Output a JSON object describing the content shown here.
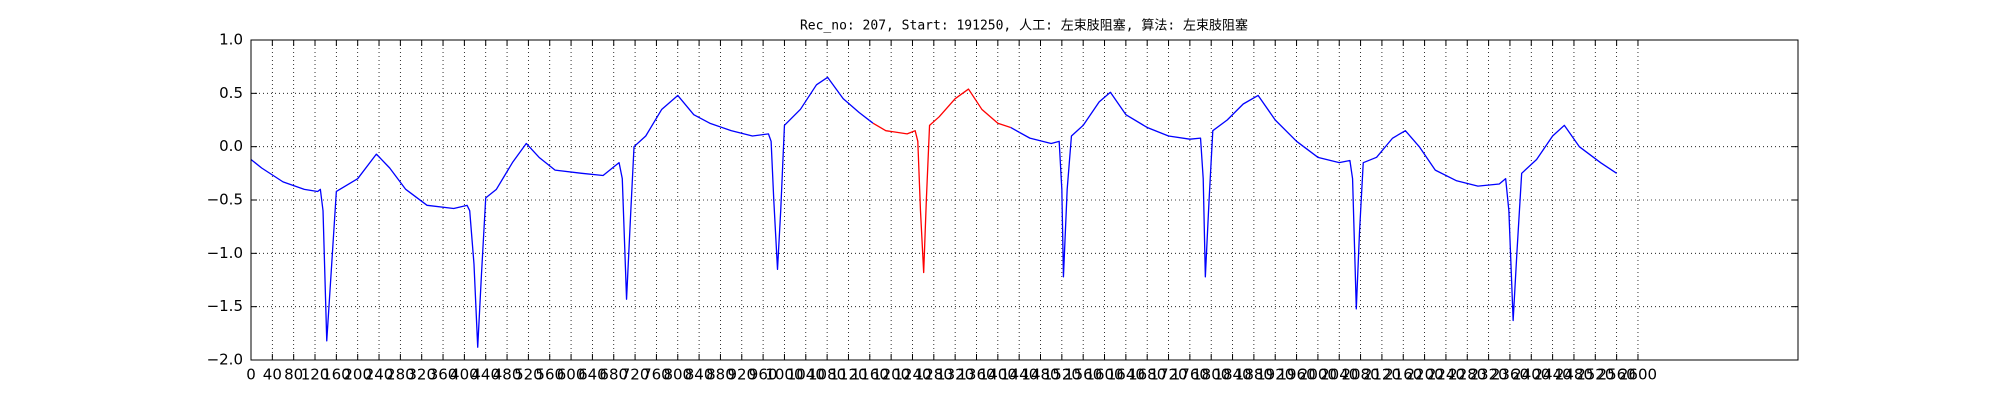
{
  "chart_data": {
    "type": "line",
    "title": "Rec_no: 207, Start: 191250, 人工: 左束肢阻塞, 算法: 左束肢阻塞",
    "x": [
      0,
      20,
      60,
      100,
      125,
      130,
      135,
      142,
      150,
      160,
      180,
      200,
      235,
      260,
      290,
      330,
      380,
      405,
      410,
      418,
      425,
      432,
      440,
      460,
      490,
      516,
      540,
      570,
      620,
      660,
      690,
      696,
      704,
      712,
      718,
      740,
      770,
      800,
      830,
      860,
      900,
      940,
      970,
      975,
      980,
      987,
      993,
      1000,
      1030,
      1060,
      1081,
      1110,
      1140,
      1166,
      1190,
      1230,
      1245,
      1250,
      1255,
      1261,
      1266,
      1272,
      1290,
      1320,
      1345,
      1370,
      1400,
      1424,
      1460,
      1500,
      1515,
      1520,
      1523,
      1530,
      1538,
      1560,
      1590,
      1611,
      1640,
      1680,
      1720,
      1760,
      1780,
      1785,
      1789,
      1796,
      1803,
      1830,
      1860,
      1888,
      1920,
      1960,
      2000,
      2040,
      2060,
      2065,
      2072,
      2078,
      2085,
      2110,
      2140,
      2164,
      2190,
      2220,
      2260,
      2300,
      2340,
      2352,
      2358,
      2366,
      2373,
      2382,
      2410,
      2440,
      2462,
      2490,
      2530,
      2560
    ],
    "series": [
      {
        "color": "#0000ff",
        "values": [
          -0.12,
          -0.2,
          -0.33,
          -0.4,
          -0.42,
          -0.4,
          -0.6,
          -1.82,
          -1.2,
          -0.42,
          -0.36,
          -0.3,
          -0.07,
          -0.2,
          -0.4,
          -0.55,
          -0.58,
          -0.55,
          -0.6,
          -1.1,
          -1.88,
          -1.2,
          -0.48,
          -0.4,
          -0.15,
          0.03,
          -0.1,
          -0.22,
          -0.25,
          -0.27,
          -0.15,
          -0.3,
          -1.43,
          -0.6,
          0,
          0.1,
          0.35,
          0.48,
          0.3,
          0.22,
          0.15,
          0.1,
          0.12,
          0.05,
          -0.5,
          -1.15,
          -0.6,
          0.2,
          0.35,
          0.58,
          0.65,
          0.45,
          0.32,
          0.22,
          null,
          null,
          null,
          null,
          null,
          null,
          null,
          null,
          null,
          null,
          null,
          null,
          null,
          0.18,
          0.08,
          0.03,
          0.05,
          -0.4,
          -1.22,
          -0.4,
          0.1,
          0.2,
          0.42,
          0.51,
          0.3,
          0.18,
          0.1,
          0.07,
          0.08,
          -0.3,
          -1.22,
          -0.5,
          0.15,
          0.25,
          0.4,
          0.48,
          0.25,
          0.05,
          -0.1,
          -0.15,
          -0.13,
          -0.3,
          -1.52,
          -0.8,
          -0.15,
          -0.1,
          0.08,
          0.15,
          0,
          -0.22,
          -0.32,
          -0.37,
          -0.35,
          -0.3,
          -0.6,
          -1.63,
          -1.0,
          -0.25,
          -0.12,
          0.1,
          0.2,
          0,
          -0.15,
          -0.25
        ]
      },
      {
        "color": "#ff0000",
        "values": [
          null,
          null,
          null,
          null,
          null,
          null,
          null,
          null,
          null,
          null,
          null,
          null,
          null,
          null,
          null,
          null,
          null,
          null,
          null,
          null,
          null,
          null,
          null,
          null,
          null,
          null,
          null,
          null,
          null,
          null,
          null,
          null,
          null,
          null,
          null,
          null,
          null,
          null,
          null,
          null,
          null,
          null,
          null,
          null,
          null,
          null,
          null,
          null,
          null,
          null,
          null,
          null,
          null,
          0.22,
          0.15,
          0.12,
          0.15,
          0.05,
          -0.6,
          -1.18,
          -0.5,
          0.2,
          0.28,
          0.45,
          0.54,
          0.35,
          0.22,
          0.18,
          null,
          null,
          null,
          null,
          null,
          null,
          null,
          null,
          null,
          null,
          null,
          null,
          null,
          null,
          null,
          null,
          null,
          null,
          null,
          null,
          null,
          null,
          null,
          null,
          null,
          null,
          null,
          null,
          null,
          null,
          null,
          null,
          null,
          null,
          null,
          null,
          null,
          null,
          null,
          null,
          null,
          null,
          null,
          null,
          null,
          null,
          null,
          null,
          null,
          null
        ]
      }
    ],
    "xlim": [
      0,
      2900
    ],
    "xticks": [
      0,
      40,
      80,
      120,
      160,
      200,
      240,
      280,
      320,
      360,
      400,
      440,
      480,
      520,
      560,
      600,
      640,
      680,
      720,
      760,
      800,
      840,
      880,
      920,
      960,
      1000,
      1040,
      1080,
      1120,
      1160,
      1200,
      1240,
      1280,
      1320,
      1360,
      1400,
      1440,
      1480,
      1520,
      1560,
      1600,
      1640,
      1680,
      1720,
      1760,
      1800,
      1840,
      1880,
      1920,
      1960,
      2000,
      2040,
      2080,
      2120,
      2160,
      2200,
      2240,
      2280,
      2320,
      2360,
      2400,
      2440,
      2480,
      2520,
      2560,
      2600
    ],
    "ylim": [
      -2.0,
      1.0
    ],
    "yticks": [
      {
        "value": -2.0,
        "label": "−2.0"
      },
      {
        "value": -1.5,
        "label": "−1.5"
      },
      {
        "value": -1.0,
        "label": "−1.0"
      },
      {
        "value": -0.5,
        "label": "−0.5"
      },
      {
        "value": 0,
        "label": "0.0"
      },
      {
        "value": 0.5,
        "label": "0.5"
      },
      {
        "value": 1.0,
        "label": "1.0"
      }
    ],
    "grid": true
  }
}
